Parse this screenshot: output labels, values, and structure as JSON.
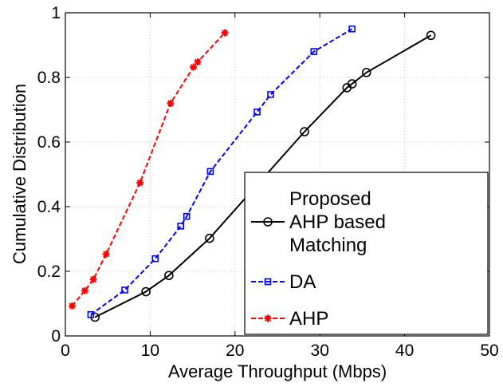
{
  "chart_data": {
    "type": "line",
    "xlabel": "Average Throughput (Mbps)",
    "ylabel": "Cumulative Distribution",
    "xlim": [
      0,
      50
    ],
    "ylim": [
      0,
      1
    ],
    "xticks": [
      "0",
      "10",
      "20",
      "30",
      "40",
      "50"
    ],
    "yticks": [
      "0",
      "0.2",
      "0.4",
      "0.6",
      "0.8",
      "1"
    ],
    "grid": true,
    "legend_position": "bottom-right",
    "series": [
      {
        "name": "Proposed AHP based Matching",
        "legend_lines": [
          "Proposed",
          "AHP based",
          "Matching"
        ],
        "color": "#000000",
        "line_style": "solid",
        "marker": "circle",
        "x": [
          3.5,
          9.5,
          12.2,
          17,
          28.2,
          33.2,
          33.8,
          35.5,
          43.1
        ],
        "y": [
          0.058,
          0.137,
          0.187,
          0.302,
          0.632,
          0.768,
          0.78,
          0.815,
          0.93
        ]
      },
      {
        "name": "DA",
        "legend_lines": [
          "DA"
        ],
        "color": "#0000ff",
        "line_style": "dashed",
        "marker": "square",
        "x": [
          3,
          7,
          10.6,
          13.6,
          14.3,
          17.1,
          22.6,
          24.2,
          29.3,
          33.8
        ],
        "y": [
          0.066,
          0.142,
          0.239,
          0.34,
          0.37,
          0.509,
          0.693,
          0.747,
          0.88,
          0.95
        ]
      },
      {
        "name": "AHP",
        "legend_lines": [
          "AHP"
        ],
        "color": "#ff0000",
        "line_style": "dashed",
        "marker": "asterisk",
        "x": [
          0.8,
          2.3,
          3.3,
          4.8,
          8.8,
          12.4,
          15.1,
          15.6,
          18.8
        ],
        "y": [
          0.093,
          0.14,
          0.175,
          0.253,
          0.474,
          0.72,
          0.832,
          0.848,
          0.938
        ]
      }
    ]
  }
}
